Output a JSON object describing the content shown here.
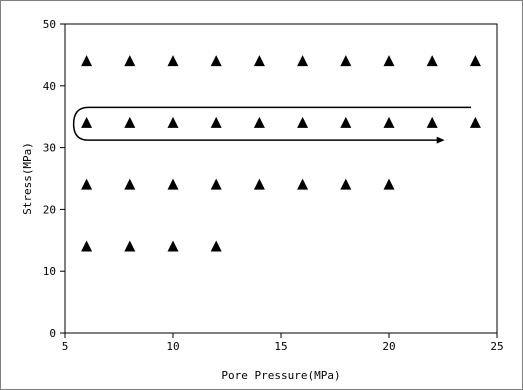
{
  "chart_data": {
    "type": "scatter",
    "title": "",
    "xlabel": "Pore Pressure(MPa)",
    "ylabel": "Stress(MPa)",
    "xlim": [
      5,
      25
    ],
    "ylim": [
      0,
      50
    ],
    "xticks": [
      5,
      10,
      15,
      20,
      25
    ],
    "yticks": [
      0,
      10,
      20,
      30,
      40,
      50
    ],
    "grid": false,
    "legend": "none",
    "marker": "filled-triangle",
    "marker_color": "#000000",
    "series": [
      {
        "points": [
          [
            6,
            44
          ],
          [
            8,
            44
          ],
          [
            10,
            44
          ],
          [
            12,
            44
          ],
          [
            14,
            44
          ],
          [
            16,
            44
          ],
          [
            18,
            44
          ],
          [
            20,
            44
          ],
          [
            22,
            44
          ],
          [
            24,
            44
          ],
          [
            6,
            34
          ],
          [
            8,
            34
          ],
          [
            10,
            34
          ],
          [
            12,
            34
          ],
          [
            14,
            34
          ],
          [
            16,
            34
          ],
          [
            18,
            34
          ],
          [
            20,
            34
          ],
          [
            22,
            34
          ],
          [
            24,
            34
          ],
          [
            6,
            24
          ],
          [
            8,
            24
          ],
          [
            10,
            24
          ],
          [
            12,
            24
          ],
          [
            14,
            24
          ],
          [
            16,
            24
          ],
          [
            18,
            24
          ],
          [
            20,
            24
          ],
          [
            6,
            14
          ],
          [
            8,
            14
          ],
          [
            10,
            14
          ],
          [
            12,
            14
          ]
        ]
      }
    ],
    "annotations": [
      {
        "type": "loading-path-arrow",
        "description_points": [
          [
            23.8,
            36.5
          ],
          [
            5.8,
            36.5
          ],
          [
            5.4,
            33.8
          ],
          [
            5.8,
            31.2
          ],
          [
            22.3,
            31.2
          ]
        ]
      }
    ]
  }
}
